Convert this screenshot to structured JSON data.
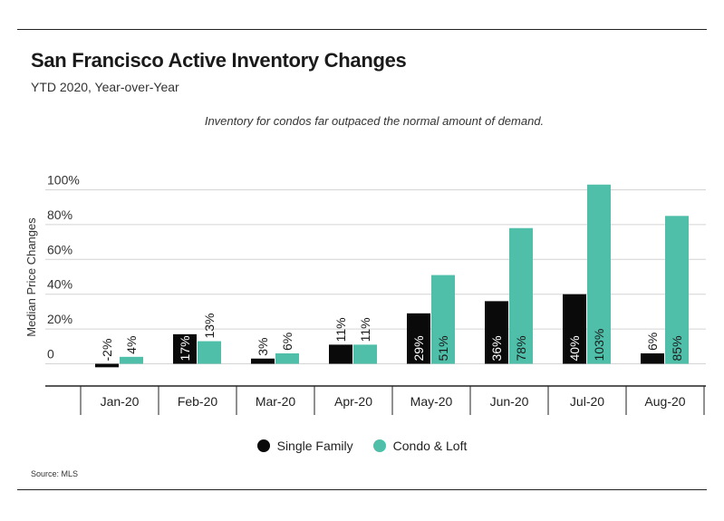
{
  "header": {
    "title": "San Francisco Active Inventory Changes",
    "subtitle": "YTD 2020, Year-over-Year",
    "annotation": "Inventory for condos far outpaced the normal amount of demand."
  },
  "footer": {
    "source": "Source:  MLS"
  },
  "colors": {
    "single_family": "#0a0a0a",
    "condo_loft": "#4fbfaa",
    "grid": "#d4d4d4",
    "axis": "#222222"
  },
  "chart_data": {
    "type": "bar",
    "title": "San Francisco Active Inventory Changes",
    "subtitle": "YTD 2020, Year-over-Year",
    "ylabel": "Median Price Changes",
    "xlabel": "",
    "ylim": [
      -10,
      110
    ],
    "yticks": [
      0,
      20,
      40,
      60,
      80,
      100
    ],
    "ytick_labels": [
      "0",
      "20%",
      "40%",
      "60%",
      "80%",
      "100%"
    ],
    "grid": true,
    "legend_position": "bottom-center",
    "categories": [
      "Jan-20",
      "Feb-20",
      "Mar-20",
      "Apr-20",
      "May-20",
      "Jun-20",
      "Jul-20",
      "Aug-20"
    ],
    "series": [
      {
        "name": "Single Family",
        "values": [
          -2,
          17,
          3,
          11,
          29,
          36,
          40,
          6
        ],
        "labels": [
          "-2%",
          "17%",
          "3%",
          "11%",
          "29%",
          "36%",
          "40%",
          "6%"
        ]
      },
      {
        "name": "Condo & Loft",
        "values": [
          4,
          13,
          6,
          11,
          51,
          78,
          103,
          85
        ],
        "labels": [
          "4%",
          "13%",
          "6%",
          "11%",
          "51%",
          "78%",
          "103%",
          "85%"
        ]
      }
    ]
  }
}
